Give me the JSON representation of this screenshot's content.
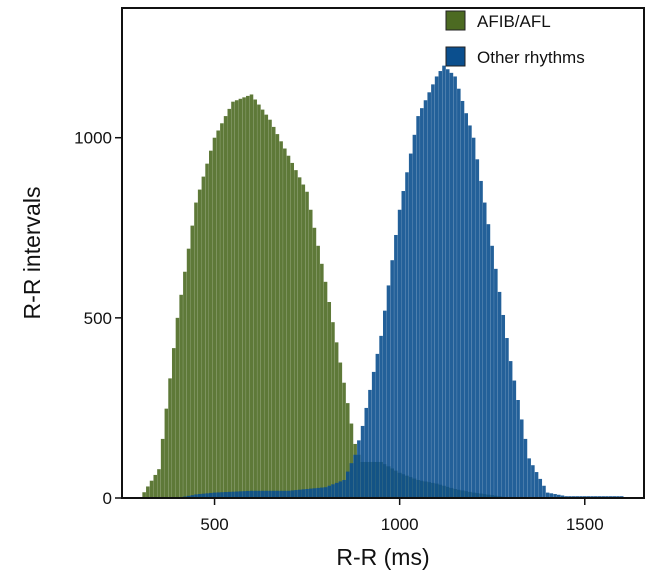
{
  "chart_data": {
    "type": "bar",
    "subtype": "overlapping-histogram",
    "title": "",
    "xlabel": "R-R (ms)",
    "ylabel": "R-R intervals",
    "xlim": [
      250,
      1660
    ],
    "ylim": [
      0,
      1360
    ],
    "xticks": [
      500,
      1000,
      1500
    ],
    "yticks": [
      0,
      500,
      1000
    ],
    "bin_width_ms": 10,
    "legend": {
      "position": "top-right"
    },
    "series": [
      {
        "name": "AFIB/AFL",
        "color": "#4c6a22",
        "x": [
          300,
          350,
          400,
          450,
          500,
          550,
          600,
          650,
          700,
          750,
          800,
          850,
          880,
          890,
          900,
          950,
          1000,
          1050,
          1100,
          1150,
          1200,
          1250,
          1300
        ],
        "values": [
          0,
          80,
          500,
          820,
          1000,
          1100,
          1120,
          1050,
          950,
          850,
          600,
          320,
          150,
          120,
          100,
          100,
          70,
          50,
          40,
          25,
          15,
          8,
          0
        ]
      },
      {
        "name": "Other rhythms",
        "color": "#0b4f8e",
        "x": [
          400,
          450,
          500,
          600,
          700,
          800,
          850,
          880,
          900,
          950,
          1000,
          1050,
          1100,
          1120,
          1150,
          1200,
          1250,
          1300,
          1350,
          1400,
          1450,
          1500,
          1600
        ],
        "values": [
          0,
          10,
          15,
          20,
          20,
          30,
          50,
          120,
          200,
          450,
          800,
          1060,
          1170,
          1200,
          1170,
          1000,
          700,
          380,
          110,
          15,
          5,
          5,
          5
        ]
      }
    ]
  }
}
